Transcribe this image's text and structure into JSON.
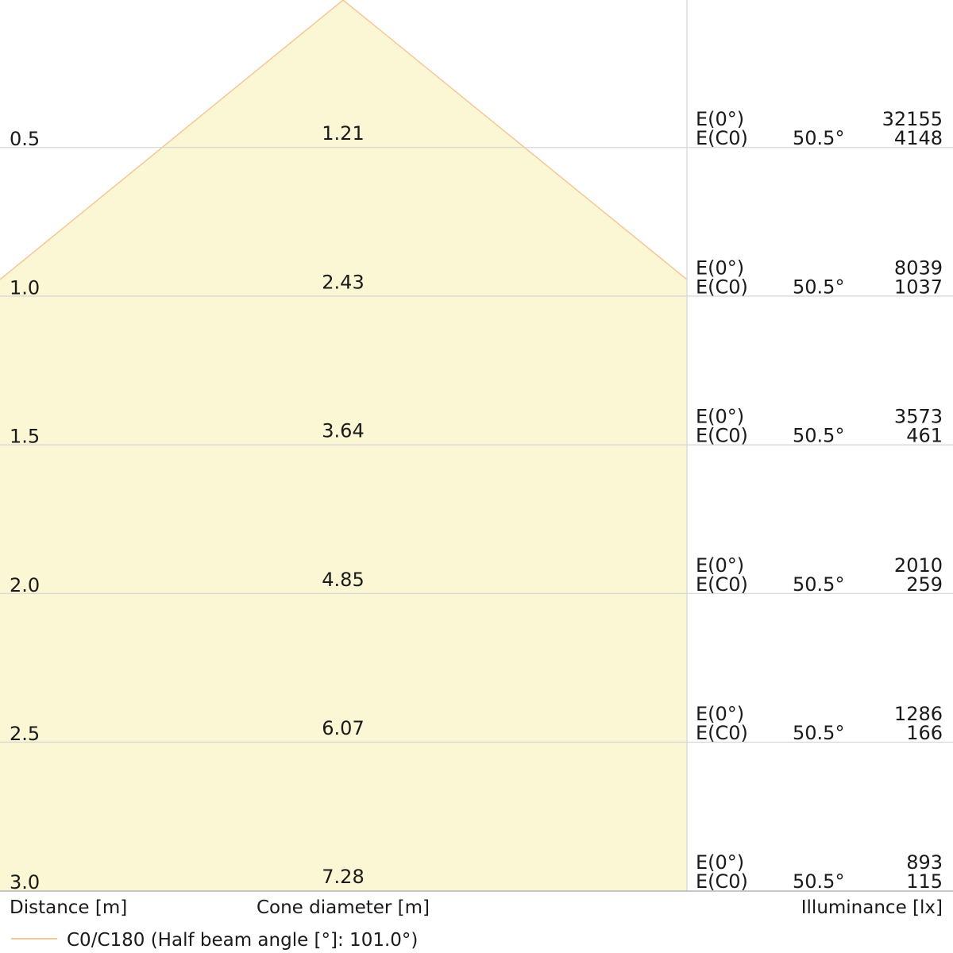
{
  "chart_data": {
    "type": "cone",
    "rows": [
      {
        "distance": "0.5",
        "cone_diameter": "1.21",
        "e0_label": "E(0°)",
        "ec0_label": "E(C0)",
        "angle": "50.5°",
        "e0_value": "32155",
        "ec0_value": "4148"
      },
      {
        "distance": "1.0",
        "cone_diameter": "2.43",
        "e0_label": "E(0°)",
        "ec0_label": "E(C0)",
        "angle": "50.5°",
        "e0_value": "8039",
        "ec0_value": "1037"
      },
      {
        "distance": "1.5",
        "cone_diameter": "3.64",
        "e0_label": "E(0°)",
        "ec0_label": "E(C0)",
        "angle": "50.5°",
        "e0_value": "3573",
        "ec0_value": "461"
      },
      {
        "distance": "2.0",
        "cone_diameter": "4.85",
        "e0_label": "E(0°)",
        "ec0_label": "E(C0)",
        "angle": "50.5°",
        "e0_value": "2010",
        "ec0_value": "259"
      },
      {
        "distance": "2.5",
        "cone_diameter": "6.07",
        "e0_label": "E(0°)",
        "ec0_label": "E(C0)",
        "angle": "50.5°",
        "e0_value": "1286",
        "ec0_value": "166"
      },
      {
        "distance": "3.0",
        "cone_diameter": "7.28",
        "e0_label": "E(0°)",
        "ec0_label": "E(C0)",
        "angle": "50.5°",
        "e0_value": "893",
        "ec0_value": "115"
      }
    ],
    "half_beam_angle": 101.0,
    "distance_label": "Distance [m]",
    "diameter_label": "Cone diameter [m]",
    "illuminance_label": "Illuminance [lx]",
    "legend_label": "C0/C180 (Half beam angle [°]: 101.0°)",
    "colors": {
      "cone_fill": "#fbf6d3",
      "cone_edge": "#f5c89a",
      "grid": "#d4d4d4",
      "text": "#1a1a1a"
    }
  }
}
